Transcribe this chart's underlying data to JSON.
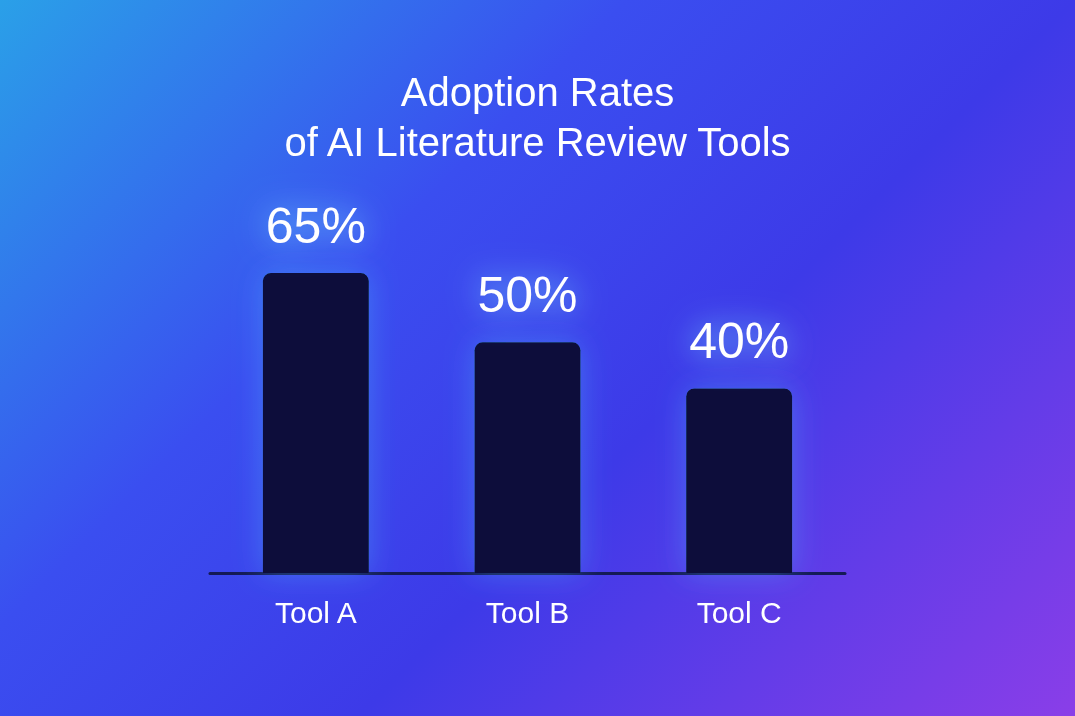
{
  "chart_data": {
    "type": "bar",
    "title": "Adoption Rates\nof AI Literature Review Tools",
    "categories": [
      "Tool A",
      "Tool B",
      "Tool C"
    ],
    "values": [
      65,
      50,
      40
    ],
    "value_labels": [
      "65%",
      "50%",
      "40%"
    ],
    "color": "#0a0e3a"
  }
}
